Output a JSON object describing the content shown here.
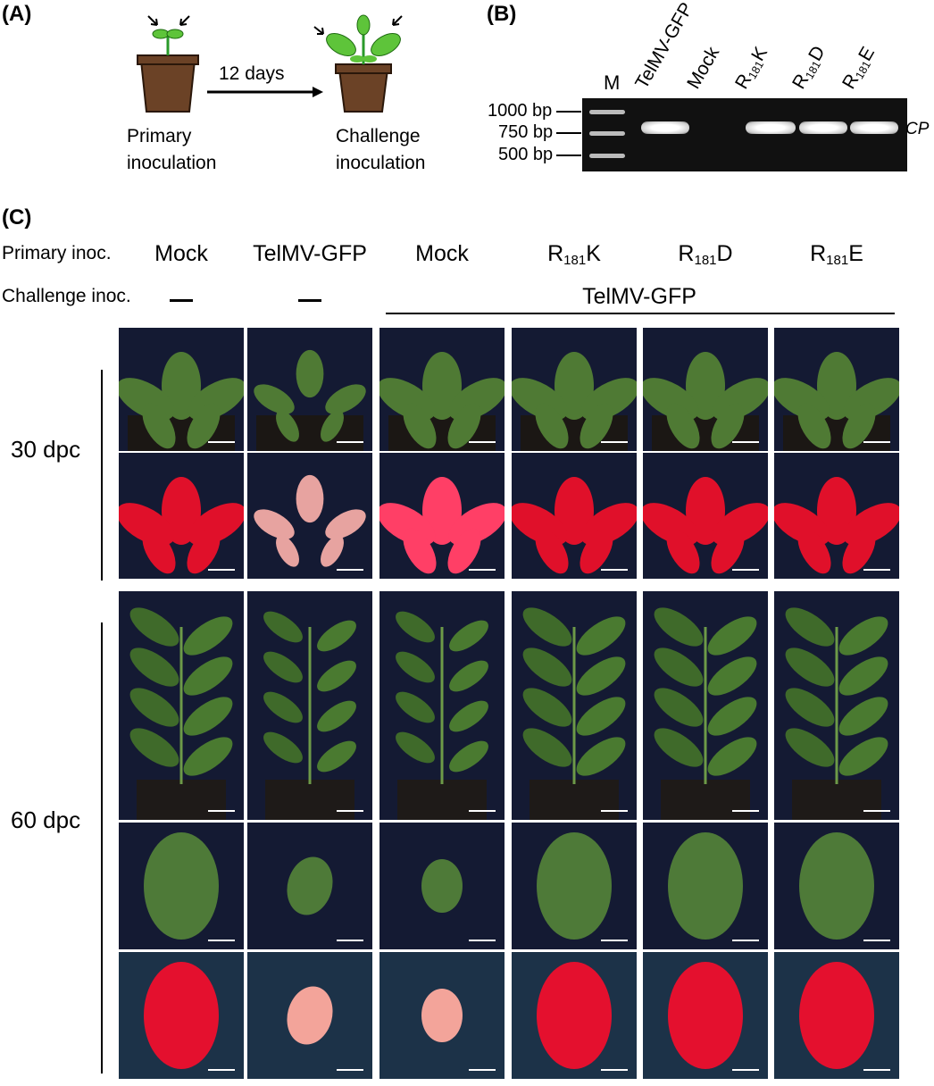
{
  "panel_a": {
    "label": "(A)",
    "interval": "12 days",
    "left_caption": [
      "Primary",
      "inoculation"
    ],
    "right_caption": [
      "Challenge",
      "inoculation"
    ]
  },
  "panel_b": {
    "label": "(B)",
    "marker_lane": "M",
    "lanes": [
      "TelMV-GFP",
      "Mock",
      "R181K",
      "R181D",
      "R181E"
    ],
    "size_markers": [
      "1000 bp",
      "750 bp",
      "500 bp"
    ],
    "band_label": "CP"
  },
  "panel_c": {
    "label": "(C)",
    "primary_label": "Primary inoc.",
    "challenge_label": "Challenge inoc.",
    "columns": [
      {
        "primary": "Mock",
        "challenge": "—"
      },
      {
        "primary": "TelMV-GFP",
        "challenge": "—"
      },
      {
        "primary": "Mock",
        "challenge": "TelMV-GFP"
      },
      {
        "primary": "R181K",
        "challenge": "TelMV-GFP"
      },
      {
        "primary": "R181D",
        "challenge": "TelMV-GFP"
      },
      {
        "primary": "R181E",
        "challenge": "TelMV-GFP"
      }
    ],
    "challenge_group_label": "TelMV-GFP",
    "timepoints": [
      "30 dpc",
      "60 dpc"
    ]
  }
}
